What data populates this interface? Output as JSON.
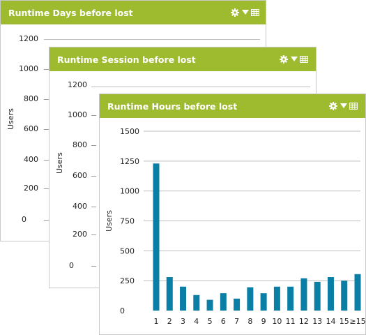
{
  "panels": [
    {
      "title": "Runtime Days before lost",
      "ylabel": "Users",
      "ticks": [
        "1200",
        "1000",
        "800",
        "600",
        "400",
        "200",
        "0"
      ]
    },
    {
      "title": "Runtime Session before lost",
      "ylabel": "Users",
      "ticks": [
        "1200",
        "1000",
        "800",
        "600",
        "400",
        "200",
        "0"
      ]
    },
    {
      "title": "Runtime Hours before lost",
      "ylabel": "Users"
    }
  ],
  "icons": [
    "gear-icon",
    "dropdown-arrow-icon",
    "table-icon"
  ],
  "colors": {
    "header": "#9ebb2f",
    "bar": "#0b7ea6"
  },
  "chart_data": {
    "type": "bar",
    "title": "Runtime Hours before lost",
    "xlabel": "",
    "ylabel": "Users",
    "categories": [
      "1",
      "2",
      "3",
      "4",
      "5",
      "6",
      "7",
      "8",
      "9",
      "10",
      "11",
      "12",
      "13",
      "14",
      "15",
      "≥15"
    ],
    "values": [
      1230,
      280,
      200,
      130,
      90,
      145,
      100,
      195,
      145,
      200,
      200,
      270,
      240,
      280,
      250,
      305
    ],
    "yticks": [
      0,
      250,
      500,
      750,
      1000,
      1250,
      1500
    ],
    "ylim": [
      0,
      1500
    ],
    "grid": true
  }
}
